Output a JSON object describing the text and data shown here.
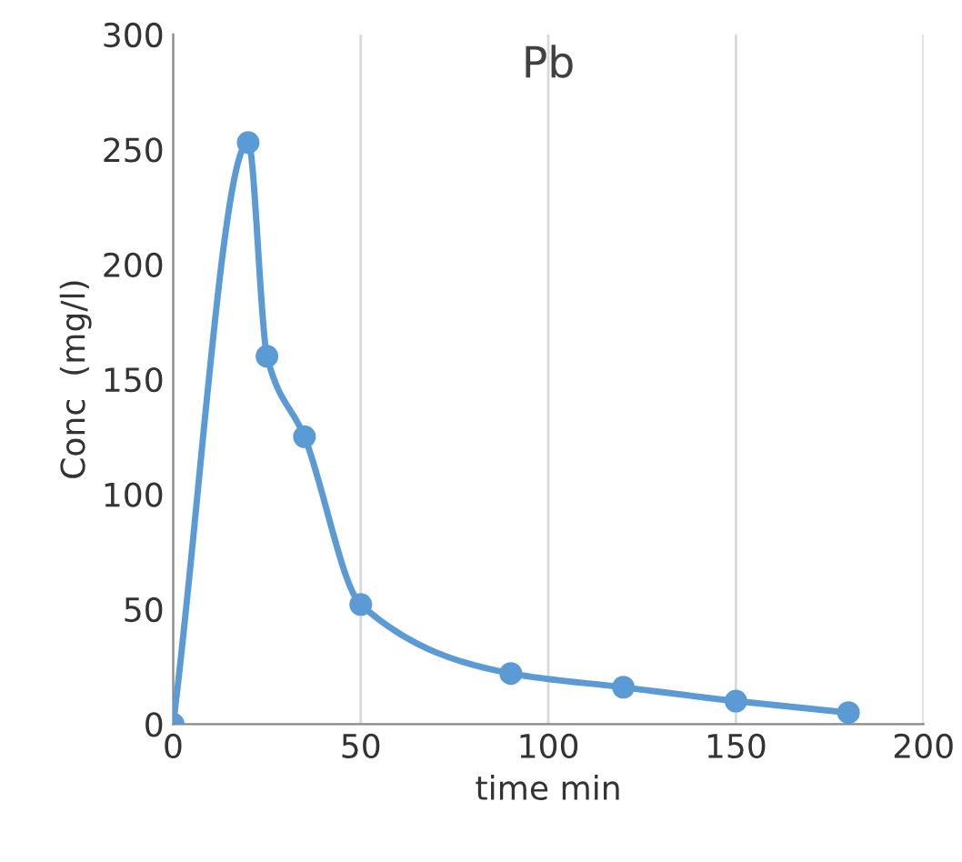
{
  "chart_data": {
    "type": "line",
    "title": "Pb",
    "xlabel": "time min",
    "ylabel": "Conc  (mg/l)",
    "x": [
      0,
      20,
      25,
      35,
      50,
      90,
      120,
      150,
      180
    ],
    "series": [
      {
        "color": "#5b9bd5",
        "values": [
          0,
          253,
          160,
          125,
          52,
          22,
          16,
          10,
          5
        ]
      }
    ],
    "xlim": [
      0,
      200
    ],
    "xticks": [
      0,
      50,
      100,
      150,
      200
    ],
    "ylim": [
      0,
      300
    ],
    "yticks": [
      0,
      50,
      100,
      150,
      200,
      250,
      300
    ],
    "grid": "x",
    "marker": "circle",
    "line_style": "solid",
    "legend": false
  }
}
